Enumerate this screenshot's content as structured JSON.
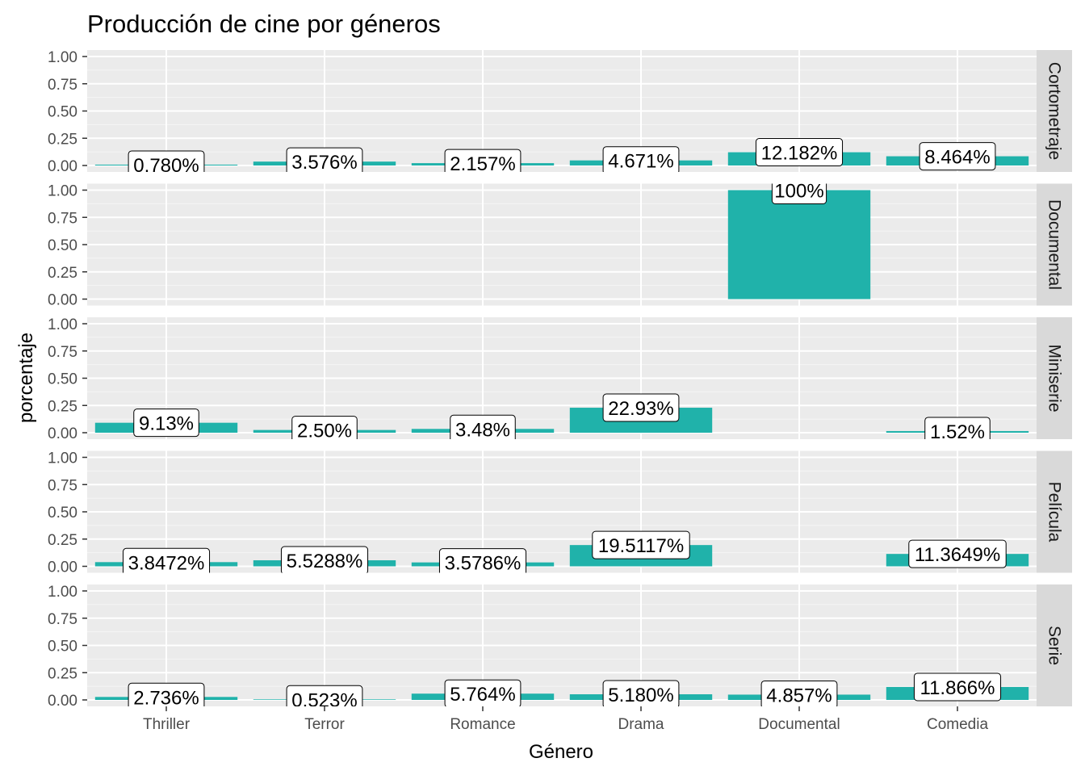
{
  "chart_data": {
    "type": "bar",
    "title": "Producción de cine por géneros",
    "xlabel": "Género",
    "ylabel": "porcentaje",
    "categories": [
      "Thriller",
      "Terror",
      "Romance",
      "Drama",
      "Documental",
      "Comedia"
    ],
    "ylim": [
      0,
      1
    ],
    "yticks": [
      "0.00",
      "0.25",
      "0.50",
      "0.75",
      "1.00"
    ],
    "yticks_values": [
      0,
      0.25,
      0.5,
      0.75,
      1
    ],
    "grid": true,
    "bar_color": "#20b2aa",
    "panel_background": "#ebebeb",
    "strip_background": "#d9d9d9",
    "facets": [
      {
        "name": "Cortometraje",
        "values": [
          0.0078,
          0.03576,
          0.02157,
          0.04671,
          0.12182,
          0.08464
        ],
        "labels": [
          "0.780%",
          "3.576%",
          "2.157%",
          "4.671%",
          "12.182%",
          "8.464%"
        ]
      },
      {
        "name": "Documental",
        "values": [
          null,
          null,
          null,
          null,
          1.0,
          null
        ],
        "labels": [
          null,
          null,
          null,
          null,
          "100%",
          null
        ]
      },
      {
        "name": "Miniserie",
        "values": [
          0.0913,
          0.025,
          0.0348,
          0.2293,
          null,
          0.0152
        ],
        "labels": [
          "9.13%",
          "2.50%",
          "3.48%",
          "22.93%",
          null,
          "1.52%"
        ]
      },
      {
        "name": "Película",
        "values": [
          0.038472,
          0.055288,
          0.035786,
          0.195117,
          null,
          0.113649
        ],
        "labels": [
          "3.8472%",
          "5.5288%",
          "3.5786%",
          "19.5117%",
          null,
          "11.3649%"
        ]
      },
      {
        "name": "Serie",
        "values": [
          0.02736,
          0.00523,
          0.05764,
          0.0518,
          0.04857,
          0.11866
        ],
        "labels": [
          "2.736%",
          "0.523%",
          "5.764%",
          "5.180%",
          "4.857%",
          "11.866%"
        ]
      }
    ]
  }
}
